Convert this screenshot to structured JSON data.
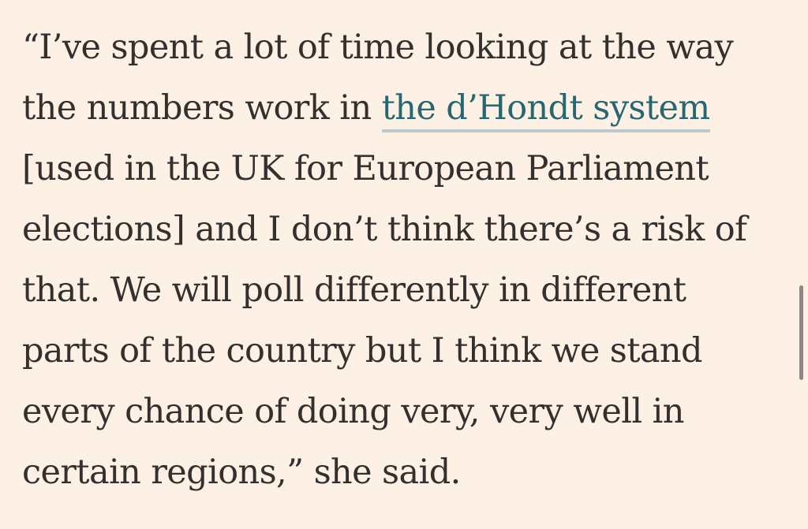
{
  "article": {
    "paragraph": {
      "line1": "“I’ve spent a lot of time looking at the way",
      "line2_before_link": "the numbers work in ",
      "link_text": "the d’Hondt system",
      "line3": "[used in the UK for European Parliament",
      "line4": "elections] and I don’t think there’s a risk of",
      "line5": "that. We will poll differently in different",
      "line6": "parts of the country but I think we stand",
      "line7": "every chance of doing very, very well in",
      "line8": "certain regions,” she said."
    }
  },
  "colors": {
    "background": "#FDF1E6",
    "text": "#33302E",
    "link": "#266770",
    "link_underline": "#BFC8CB",
    "scrollbar": "#8E8884"
  }
}
